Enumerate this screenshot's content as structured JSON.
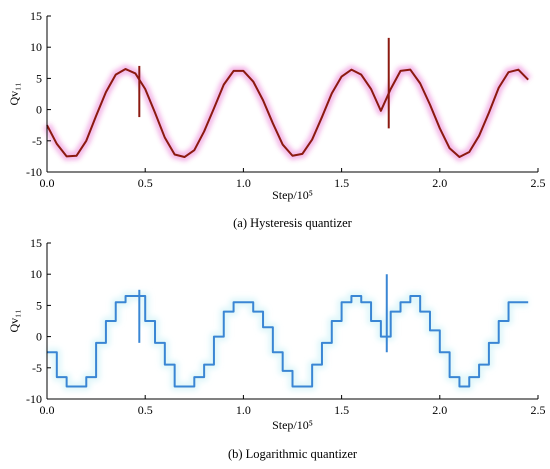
{
  "chart_data": [
    {
      "type": "line",
      "caption": "(a) Hysteresis quantizer",
      "xlabel": "Step/10⁵",
      "ylabel": "Qv₁₁",
      "xlim": [
        0,
        2.5
      ],
      "ylim": [
        -10,
        15
      ],
      "xticks": [
        "0.0",
        "0.5",
        "1.0",
        "1.5",
        "2.0",
        "2.5"
      ],
      "yticks": [
        "-10",
        "-5",
        "0",
        "5",
        "10",
        "15"
      ],
      "series": [
        {
          "color": "#8b1a10",
          "glow": "#e040c0",
          "x": [
            0.0,
            0.05,
            0.1,
            0.15,
            0.2,
            0.25,
            0.3,
            0.35,
            0.4,
            0.45,
            0.5,
            0.55,
            0.6,
            0.65,
            0.7,
            0.75,
            0.8,
            0.85,
            0.9,
            0.95,
            1.0,
            1.05,
            1.1,
            1.15,
            1.2,
            1.25,
            1.3,
            1.35,
            1.4,
            1.45,
            1.5,
            1.55,
            1.6,
            1.65,
            1.7,
            1.75,
            1.8,
            1.85,
            1.9,
            1.95,
            2.0,
            2.05,
            2.1,
            2.15,
            2.2,
            2.25,
            2.3,
            2.35,
            2.4,
            2.45
          ],
          "y": [
            -2.5,
            -5.5,
            -7.5,
            -7.4,
            -5.0,
            -1.0,
            2.8,
            5.6,
            6.5,
            5.8,
            3.3,
            -0.5,
            -4.5,
            -7.2,
            -7.6,
            -6.5,
            -3.5,
            0.2,
            4.0,
            6.2,
            6.2,
            4.5,
            1.5,
            -2.2,
            -5.6,
            -7.4,
            -7.1,
            -4.8,
            -1.2,
            2.6,
            5.3,
            6.4,
            5.6,
            3.3,
            -0.2,
            3.3,
            6.2,
            6.4,
            4.2,
            0.8,
            -3.0,
            -6.2,
            -7.6,
            -6.8,
            -4.2,
            -0.5,
            3.5,
            6.0,
            6.4,
            4.8
          ]
        }
      ]
    },
    {
      "type": "line",
      "caption": "(b) Logarithmic quantizer",
      "xlabel": "Step/10⁵",
      "ylabel": "Qv₁₁",
      "xlim": [
        0,
        2.5
      ],
      "ylim": [
        -10,
        15
      ],
      "xticks": [
        "0.0",
        "0.5",
        "1.0",
        "1.5",
        "2.0",
        "2.5"
      ],
      "yticks": [
        "-10",
        "-5",
        "0",
        "5",
        "10",
        "15"
      ],
      "series": [
        {
          "color": "#3a86d4",
          "glow": "#a8e8f0",
          "x": [
            0.0,
            0.05,
            0.1,
            0.15,
            0.2,
            0.25,
            0.3,
            0.35,
            0.4,
            0.45,
            0.5,
            0.55,
            0.6,
            0.65,
            0.7,
            0.75,
            0.8,
            0.85,
            0.9,
            0.95,
            1.0,
            1.05,
            1.1,
            1.15,
            1.2,
            1.25,
            1.3,
            1.35,
            1.4,
            1.45,
            1.5,
            1.55,
            1.6,
            1.65,
            1.7,
            1.75,
            1.8,
            1.85,
            1.9,
            1.95,
            2.0,
            2.05,
            2.1,
            2.15,
            2.2,
            2.25,
            2.3,
            2.35,
            2.4,
            2.45
          ],
          "y": [
            -2.5,
            -6.5,
            -8.0,
            -8.0,
            -6.5,
            -1.0,
            2.5,
            5.5,
            6.5,
            6.5,
            2.5,
            -1.0,
            -4.5,
            -8.0,
            -8.0,
            -6.5,
            -4.5,
            0.0,
            4.0,
            5.5,
            5.5,
            4.0,
            1.5,
            -2.5,
            -5.5,
            -8.0,
            -8.0,
            -4.5,
            -1.0,
            2.5,
            5.5,
            6.5,
            5.5,
            2.5,
            0.0,
            4.0,
            5.5,
            6.5,
            4.0,
            1.0,
            -2.5,
            -6.5,
            -8.0,
            -6.5,
            -4.5,
            -1.0,
            2.5,
            5.5,
            5.5,
            5.5
          ]
        }
      ]
    }
  ]
}
